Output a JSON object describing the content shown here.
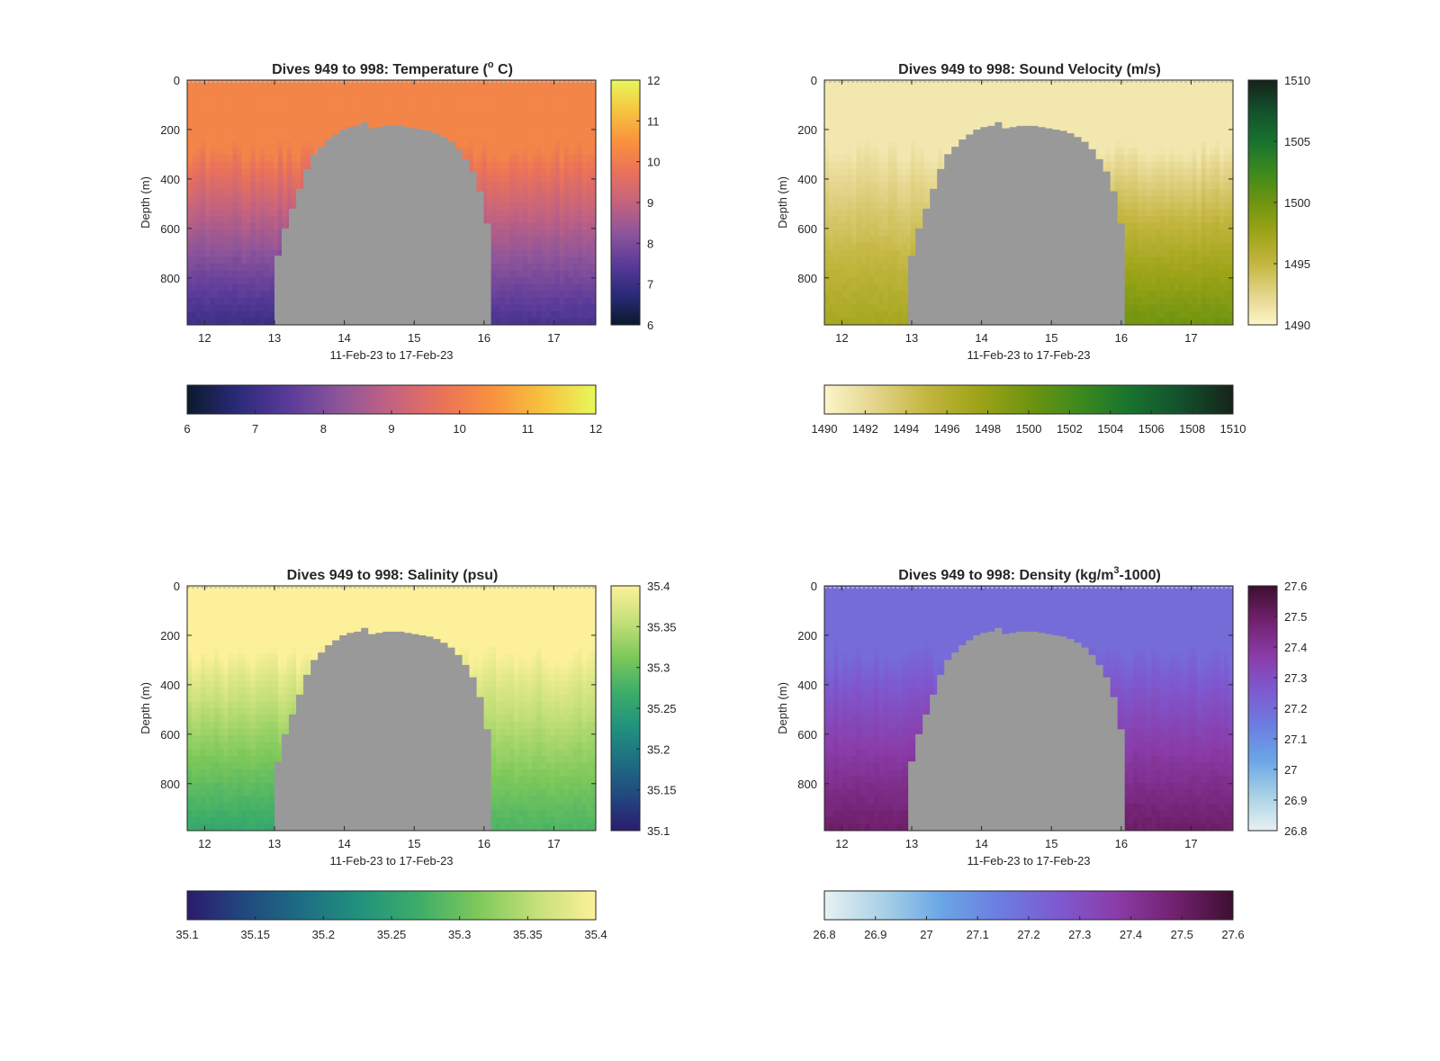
{
  "figure": {
    "date_range_label": "11-Feb-23 to 17-Feb-23",
    "depth_label": "Depth (m)",
    "dives": "949 to 998"
  },
  "chart_data": [
    {
      "type": "heatmap",
      "title_prefix": "Dives 949 to 998: Temperature (",
      "title_sup": "o",
      "title_suffix": " C)",
      "xlabel": "11-Feb-23 to 17-Feb-23",
      "ylabel": "Depth (m)",
      "xlim": [
        11.75,
        17.6
      ],
      "ylim": [
        990,
        0
      ],
      "xticks": [
        12,
        13,
        14,
        15,
        16,
        17
      ],
      "yticks": [
        0,
        200,
        400,
        600,
        800
      ],
      "clim": [
        6,
        12
      ],
      "cbar_vertical_ticks": [
        6,
        7,
        8,
        9,
        10,
        11,
        12
      ],
      "cbar_horizontal_ticks": [
        6,
        7,
        8,
        9,
        10,
        11,
        12
      ],
      "colormap": [
        "#0a1a2b",
        "#2b2a7a",
        "#5b3b9a",
        "#8e559a",
        "#c4637f",
        "#ea7259",
        "#f9923e",
        "#f6c43f",
        "#e9f75c"
      ],
      "surface_value": 10.2,
      "deep_value_left": 7.0,
      "deep_value_right": 7.2,
      "no_data_color": "#999999",
      "no_data_days": [
        13.0,
        16.1
      ]
    },
    {
      "type": "heatmap",
      "title_prefix": "Dives 949 to 998: Sound Velocity (m/s)",
      "title_sup": "",
      "title_suffix": "",
      "xlabel": "11-Feb-23 to 17-Feb-23",
      "ylabel": "Depth (m)",
      "xlim": [
        11.75,
        17.6
      ],
      "ylim": [
        990,
        0
      ],
      "xticks": [
        12,
        13,
        14,
        15,
        16,
        17
      ],
      "yticks": [
        0,
        200,
        400,
        600,
        800
      ],
      "clim": [
        1490,
        1510
      ],
      "cbar_vertical_ticks": [
        1490,
        1495,
        1500,
        1505,
        1510
      ],
      "cbar_horizontal_ticks": [
        1490,
        1492,
        1494,
        1496,
        1498,
        1500,
        1502,
        1504,
        1506,
        1508,
        1510
      ],
      "colormap": [
        "#fcf5c8",
        "#e3d48a",
        "#c3b640",
        "#9ea418",
        "#6f9410",
        "#3c8a1e",
        "#17722e",
        "#13502c",
        "#16221a"
      ],
      "surface_value": 1491,
      "deep_value_left": 1497,
      "deep_value_right": 1500,
      "no_data_color": "#999999",
      "no_data_days": [
        12.95,
        16.05
      ]
    },
    {
      "type": "heatmap",
      "title_prefix": "Dives 949 to 998: Salinity (psu)",
      "title_sup": "",
      "title_suffix": "",
      "xlabel": "11-Feb-23 to 17-Feb-23",
      "ylabel": "Depth (m)",
      "xlim": [
        11.75,
        17.6
      ],
      "ylim": [
        990,
        0
      ],
      "xticks": [
        12,
        13,
        14,
        15,
        16,
        17
      ],
      "yticks": [
        0,
        200,
        400,
        600,
        800
      ],
      "clim": [
        35.1,
        35.4
      ],
      "cbar_vertical_ticks": [
        "35.1",
        "35.15",
        "35.2",
        "35.25",
        "35.3",
        "35.35",
        "35.4"
      ],
      "cbar_horizontal_ticks": [
        "35.1",
        "35.15",
        "35.2",
        "35.25",
        "35.3",
        "35.35",
        "35.4"
      ],
      "colormap": [
        "#2b1b6e",
        "#21497f",
        "#1d6f83",
        "#22937c",
        "#3fae68",
        "#7fc95a",
        "#c6e07a",
        "#fcf19a"
      ],
      "surface_value": 35.4,
      "deep_value_left": 35.26,
      "deep_value_right": 35.28,
      "no_data_color": "#999999",
      "no_data_days": [
        13.0,
        16.1
      ]
    },
    {
      "type": "heatmap",
      "title_prefix": "Dives 949 to 998: Density (kg/m",
      "title_sup": "3",
      "title_suffix": "-1000)",
      "xlabel": "11-Feb-23 to 17-Feb-23",
      "ylabel": "Depth (m)",
      "xlim": [
        11.75,
        17.6
      ],
      "ylim": [
        990,
        0
      ],
      "xticks": [
        12,
        13,
        14,
        15,
        16,
        17
      ],
      "yticks": [
        0,
        200,
        400,
        600,
        800
      ],
      "clim": [
        26.8,
        27.6
      ],
      "cbar_vertical_ticks": [
        "26.8",
        "26.9",
        "27",
        "27.1",
        "27.2",
        "27.3",
        "27.4",
        "27.5",
        "27.6"
      ],
      "cbar_horizontal_ticks": [
        "26.8",
        "26.9",
        "27",
        "27.1",
        "27.2",
        "27.3",
        "27.4",
        "27.5",
        "27.6"
      ],
      "colormap": [
        "#e7f1f3",
        "#a9d1e6",
        "#6aa6e6",
        "#6c7de0",
        "#7e5ad0",
        "#8a3ca8",
        "#72216f",
        "#3d0f30"
      ],
      "surface_value": 27.2,
      "deep_value_left": 27.5,
      "deep_value_right": 27.5,
      "no_data_color": "#999999",
      "no_data_days": [
        12.95,
        16.05
      ]
    }
  ],
  "no_data_profile": [
    {
      "day": 13.0,
      "top": 710
    },
    {
      "day": 13.1,
      "top": 600
    },
    {
      "day": 13.2,
      "top": 520
    },
    {
      "day": 13.3,
      "top": 440
    },
    {
      "day": 13.4,
      "top": 360
    },
    {
      "day": 13.5,
      "top": 300
    },
    {
      "day": 13.6,
      "top": 270
    },
    {
      "day": 13.7,
      "top": 240
    },
    {
      "day": 13.8,
      "top": 220
    },
    {
      "day": 13.9,
      "top": 200
    },
    {
      "day": 14.0,
      "top": 190
    },
    {
      "day": 14.1,
      "top": 185
    },
    {
      "day": 14.2,
      "top": 170
    },
    {
      "day": 14.3,
      "top": 195
    },
    {
      "day": 14.4,
      "top": 190
    },
    {
      "day": 14.5,
      "top": 185
    },
    {
      "day": 14.6,
      "top": 185
    },
    {
      "day": 14.7,
      "top": 185
    },
    {
      "day": 14.8,
      "top": 190
    },
    {
      "day": 14.9,
      "top": 195
    },
    {
      "day": 15.0,
      "top": 200
    },
    {
      "day": 15.1,
      "top": 205
    },
    {
      "day": 15.2,
      "top": 215
    },
    {
      "day": 15.3,
      "top": 230
    },
    {
      "day": 15.4,
      "top": 250
    },
    {
      "day": 15.5,
      "top": 280
    },
    {
      "day": 15.6,
      "top": 320
    },
    {
      "day": 15.7,
      "top": 370
    },
    {
      "day": 15.8,
      "top": 450
    },
    {
      "day": 15.9,
      "top": 580
    },
    {
      "day": 16.0,
      "top": 700
    }
  ]
}
